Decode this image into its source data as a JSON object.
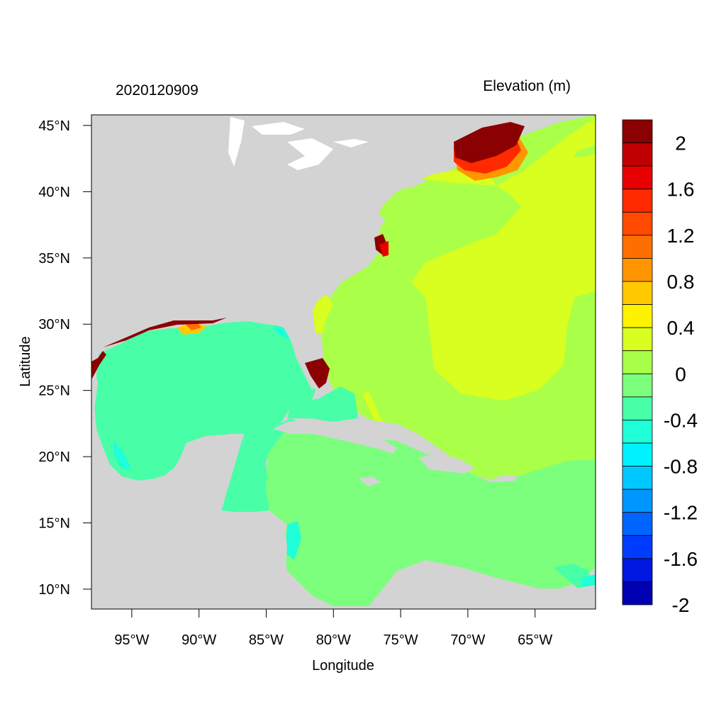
{
  "header": {
    "date_label": "2020120909",
    "variable_label": "Elevation (m)"
  },
  "axes": {
    "xlabel": "Longitude",
    "ylabel": "Latitude",
    "lon_range": [
      -98,
      -60.5
    ],
    "lat_range": [
      8.5,
      45.8
    ],
    "x_ticks": [
      {
        "value": -95,
        "label": "95°W"
      },
      {
        "value": -90,
        "label": "90°W"
      },
      {
        "value": -85,
        "label": "85°W"
      },
      {
        "value": -80,
        "label": "80°W"
      },
      {
        "value": -75,
        "label": "75°W"
      },
      {
        "value": -70,
        "label": "70°W"
      },
      {
        "value": -65,
        "label": "65°W"
      }
    ],
    "y_ticks": [
      {
        "value": 45,
        "label": "45°N"
      },
      {
        "value": 40,
        "label": "40°N"
      },
      {
        "value": 35,
        "label": "35°N"
      },
      {
        "value": 30,
        "label": "30°N"
      },
      {
        "value": 25,
        "label": "25°N"
      },
      {
        "value": 20,
        "label": "20°N"
      },
      {
        "value": 15,
        "label": "15°N"
      },
      {
        "value": 10,
        "label": "10°N"
      }
    ]
  },
  "colorbar": {
    "colors": [
      "#8b0000",
      "#c00000",
      "#e80000",
      "#ff2a00",
      "#ff4a00",
      "#ff6f00",
      "#ff9600",
      "#ffc800",
      "#fff200",
      "#d8ff1f",
      "#a8ff48",
      "#7cff7c",
      "#48ffa8",
      "#1fffd8",
      "#00f2ff",
      "#00c8ff",
      "#0096ff",
      "#0064ff",
      "#003cff",
      "#0018e0",
      "#0000b0"
    ],
    "labels": [
      "2",
      "1.6",
      "1.2",
      "0.8",
      "0.4",
      "0",
      "-0.4",
      "-0.8",
      "-1.2",
      "-1.6",
      "-2"
    ]
  },
  "map_colors": {
    "land": "#d3d3d3",
    "lakes": "#ffffff",
    "atlantic_open": "#aaff48",
    "atlantic_high": "#d8ff1f",
    "gulf": "#48ffa8",
    "caribbean": "#7cff7c",
    "surge_max": "#8b0000"
  }
}
